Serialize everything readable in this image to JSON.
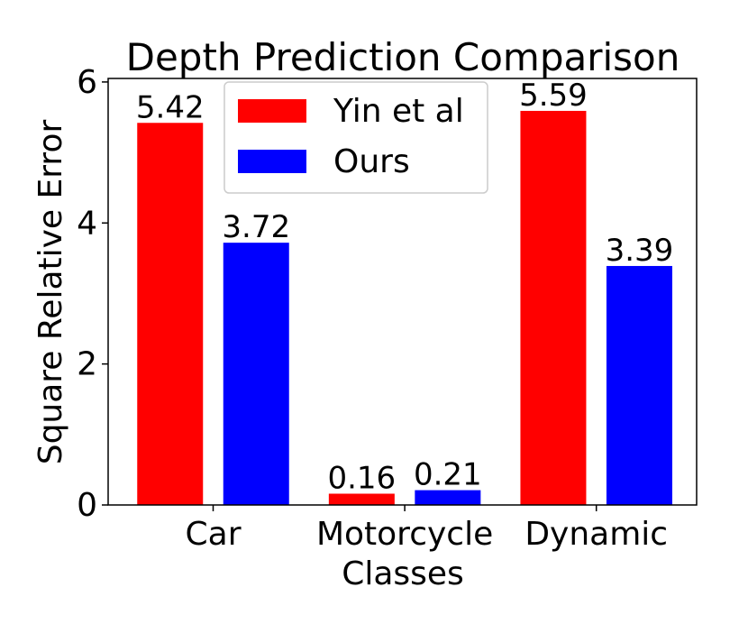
{
  "chart_data": {
    "type": "bar",
    "title": "Depth Prediction Comparison",
    "xlabel": "Classes",
    "ylabel": "Square Relative Error",
    "categories": [
      "Car",
      "Motorcycle",
      "Dynamic"
    ],
    "series": [
      {
        "name": "Yin et al",
        "values": [
          5.42,
          0.16,
          5.59
        ],
        "color": "#ff0000",
        "labels": [
          "5.42",
          "0.16",
          "5.59"
        ]
      },
      {
        "name": "Ours",
        "values": [
          3.72,
          0.21,
          3.39
        ],
        "color": "#0000ff",
        "labels": [
          "3.72",
          "0.21",
          "3.39"
        ]
      }
    ],
    "ylim": [
      0,
      6.05
    ],
    "yticks": [
      0,
      2,
      4,
      6
    ],
    "ytick_labels": [
      "0",
      "2",
      "4",
      "6"
    ],
    "grid": false,
    "legend_position": "top-center"
  }
}
